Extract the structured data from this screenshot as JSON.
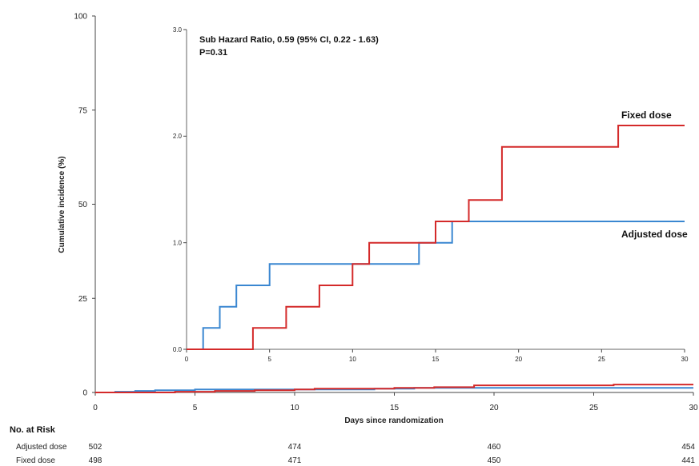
{
  "chart_data": [
    {
      "type": "line",
      "step": true,
      "xlabel": "Days since randomization",
      "ylabel": "Cumulative incidence (%)",
      "xlim": [
        0,
        30
      ],
      "ylim": [
        0,
        100
      ],
      "xticks": [
        "0",
        "5",
        "10",
        "15",
        "20",
        "25",
        "30"
      ],
      "yticks": [
        "0",
        "25",
        "50",
        "75",
        "100"
      ],
      "series": [
        {
          "name": "Adjusted dose",
          "color": "#3a87d1",
          "x": [
            0,
            1,
            2,
            3,
            5,
            14,
            16,
            30
          ],
          "y": [
            0,
            0.2,
            0.4,
            0.6,
            0.8,
            1.0,
            1.2,
            1.2
          ]
        },
        {
          "name": "Fixed dose",
          "color": "#d42a2a",
          "x": [
            0,
            4,
            6,
            8,
            10,
            11,
            15,
            17,
            19,
            26,
            30
          ],
          "y": [
            0,
            0.2,
            0.4,
            0.6,
            0.8,
            1.0,
            1.2,
            1.4,
            1.9,
            2.1,
            2.1
          ]
        }
      ]
    },
    {
      "type": "line",
      "step": true,
      "inset": true,
      "xlim": [
        0,
        30
      ],
      "ylim": [
        0,
        3.0
      ],
      "xticks": [
        "0",
        "5",
        "10",
        "15",
        "20",
        "25",
        "30"
      ],
      "yticks": [
        "0.0",
        "1.0",
        "2.0",
        "3.0"
      ],
      "annotation_lines": [
        "Sub Hazard Ratio, 0.59 (95% CI, 0.22 - 1.63)",
        "P=0.31"
      ],
      "series": [
        {
          "name": "Adjusted dose",
          "color": "#3a87d1",
          "x": [
            0,
            1,
            2,
            3,
            5,
            14,
            16,
            30
          ],
          "y": [
            0,
            0.2,
            0.4,
            0.6,
            0.8,
            1.0,
            1.2,
            1.2
          ]
        },
        {
          "name": "Fixed dose",
          "color": "#d42a2a",
          "x": [
            0,
            4,
            6,
            8,
            10,
            11,
            15,
            17,
            19,
            26,
            30
          ],
          "y": [
            0,
            0.2,
            0.4,
            0.6,
            0.8,
            1.0,
            1.2,
            1.4,
            1.9,
            2.1,
            2.1
          ]
        }
      ]
    }
  ],
  "risk_table": {
    "title": "No. at Risk",
    "days": [
      0,
      10,
      20,
      30
    ],
    "rows": [
      {
        "label": "Adjusted dose",
        "values": [
          "502",
          "474",
          "460",
          "454"
        ]
      },
      {
        "label": "Fixed dose",
        "values": [
          "498",
          "471",
          "450",
          "441"
        ]
      }
    ]
  }
}
